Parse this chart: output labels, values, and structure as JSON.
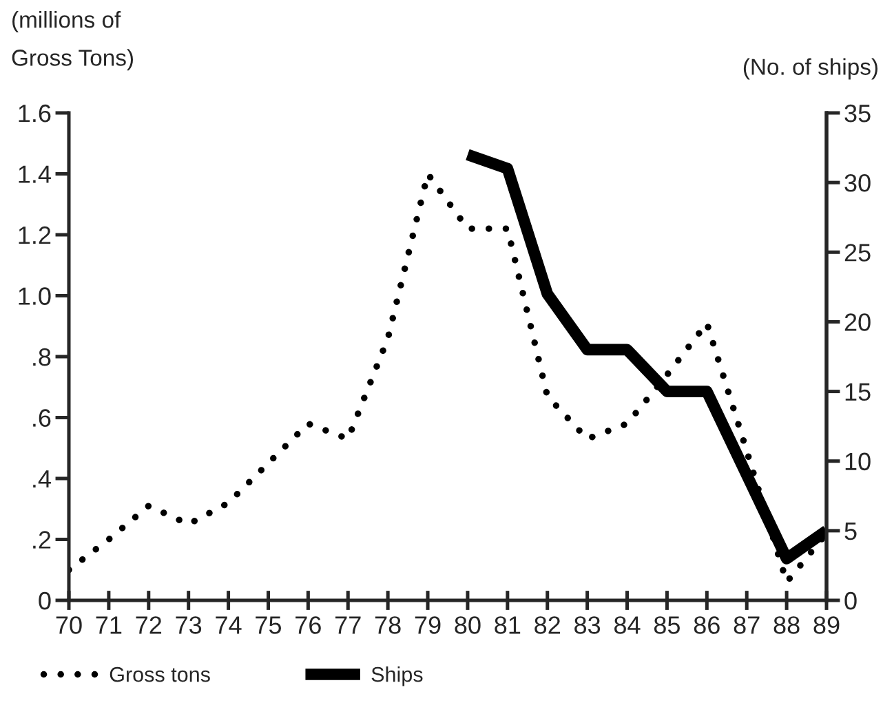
{
  "chart_data": {
    "type": "line",
    "ylabel": "(millions of\nGross Tons)",
    "y2label": "(No. of ships)",
    "categories": [
      "70",
      "71",
      "72",
      "73",
      "74",
      "75",
      "76",
      "77",
      "78",
      "79",
      "80",
      "81",
      "82",
      "83",
      "84",
      "85",
      "86",
      "87",
      "88",
      "89"
    ],
    "series": [
      {
        "name": "Gross tons",
        "color": "#000000",
        "line_style": "dotted",
        "values": [
          0.1,
          0.2,
          0.31,
          0.25,
          0.32,
          0.45,
          0.58,
          0.53,
          0.86,
          1.4,
          1.22,
          1.22,
          0.67,
          0.53,
          0.58,
          0.74,
          0.91,
          0.49,
          0.06,
          0.22
        ]
      },
      {
        "name": "Ships",
        "color": "#000000",
        "axis": "y2",
        "line_style": "solid",
        "values": [
          null,
          null,
          null,
          null,
          null,
          null,
          null,
          null,
          null,
          null,
          32,
          31,
          22,
          18,
          18,
          15,
          15,
          9,
          3,
          5
        ]
      }
    ],
    "ylim": [
      0,
      1.6
    ],
    "yticks": [
      0,
      {
        "value": 0.2,
        "label": ".2"
      },
      {
        "value": 0.4,
        "label": ".4"
      },
      {
        "value": 0.6,
        "label": ".6"
      },
      {
        "value": 0.8,
        "label": ".8"
      },
      {
        "value": 1,
        "label": "1.0"
      },
      {
        "value": 1.2,
        "label": "1.2"
      },
      {
        "value": 1.4,
        "label": "1.4"
      },
      {
        "value": 1.6,
        "label": "1.6"
      }
    ],
    "y2lim": [
      0,
      35
    ],
    "y2ticks": [
      0,
      5,
      10,
      15,
      20,
      25,
      30,
      35
    ],
    "legend": "bottom left"
  }
}
